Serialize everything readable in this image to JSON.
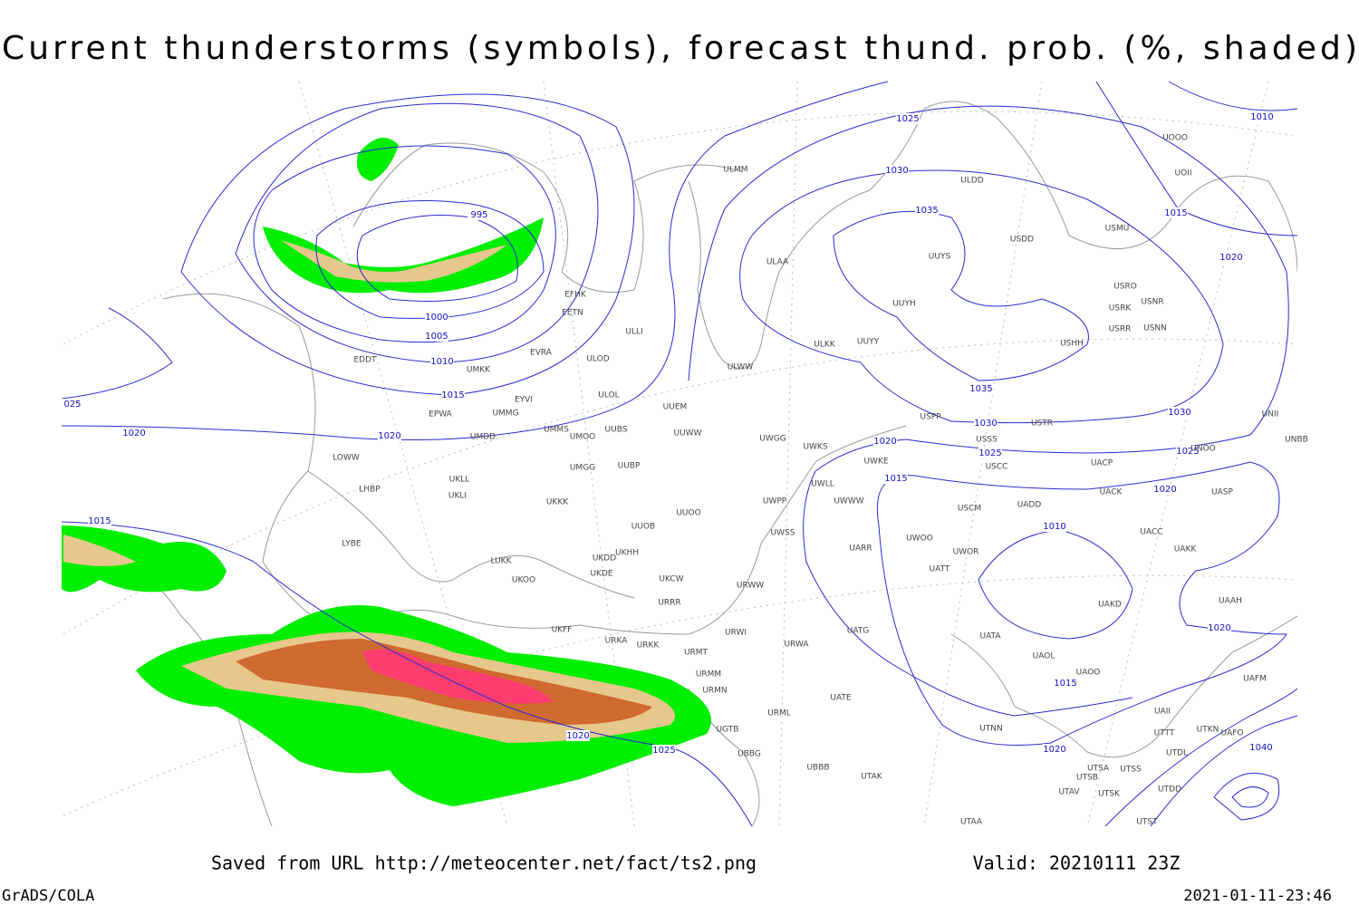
{
  "title": "Current thunderstorms (symbols), forecast thund. prob. (%, shaded)",
  "saved_from": "Saved from URL http://meteocenter.net/fact/ts2.png",
  "valid": "Valid: 20210111 23Z",
  "software": "GrADS/COLA",
  "timestamp": "2021-01-11-23:46",
  "isobar_labels": [
    "995",
    "1000",
    "1005",
    "1010",
    "1015",
    "1020",
    "1020",
    "025",
    "1015",
    "1025",
    "1030",
    "1035",
    "1035",
    "1030",
    "1025",
    "1020",
    "1015",
    "1010",
    "1015",
    "1020",
    "1020",
    "1020",
    "1025",
    "1030",
    "1020",
    "1015",
    "1010",
    "1040",
    "1020",
    "1025"
  ],
  "stations": [
    "ULMM",
    "ULAA",
    "EFHK",
    "EETN",
    "ULLI",
    "EVRA",
    "ULOD",
    "EDDT",
    "UMKK",
    "EYVI",
    "ULOL",
    "EPWA",
    "UMMG",
    "UUEM",
    "UMMS",
    "UMOO",
    "UUBS",
    "UUWW",
    "UMDD",
    "UWGG",
    "UWKS",
    "LOWW",
    "UWKE",
    "UMGG",
    "UUBP",
    "UKLL",
    "LHBP",
    "UKLI",
    "UKKK",
    "UWLL",
    "UWWW",
    "UWPP",
    "UUOO",
    "UUOB",
    "UWSS",
    "LYBE",
    "UKDD",
    "UKHH",
    "LUKK",
    "UKDE",
    "UKOO",
    "UKCW",
    "URWW",
    "UKFF",
    "URRR",
    "URKA",
    "URKK",
    "URMT",
    "URWI",
    "URMM",
    "URMN",
    "URML",
    "URWA",
    "UATG",
    "UATE",
    "UATT",
    "UARR",
    "UWOO",
    "UWOR",
    "USCM",
    "USCC",
    "USSS",
    "USTR",
    "USPP",
    "ULWW",
    "ULKK",
    "UUYY",
    "UUYH",
    "UUYS",
    "ULDD",
    "USDD",
    "USMU",
    "USRO",
    "USRK",
    "USNR",
    "USRR",
    "USNN",
    "USHH",
    "UOOO",
    "UOII",
    "UNII",
    "UNBB",
    "UNOO",
    "UACP",
    "UACK",
    "UASP",
    "UADD",
    "UACC",
    "UAKK",
    "UAKD",
    "UAAH",
    "UAFM",
    "UAOO",
    "UAOL",
    "UATA",
    "UAII",
    "UTTT",
    "UTKN",
    "UAFO",
    "UTDL",
    "UTSA",
    "UTSS",
    "UTSB",
    "UTAV",
    "UTSK",
    "UTDD",
    "UTST",
    "UTAA",
    "UTAK",
    "UTNN",
    "UBBB",
    "UBBG",
    "UGTB"
  ]
}
